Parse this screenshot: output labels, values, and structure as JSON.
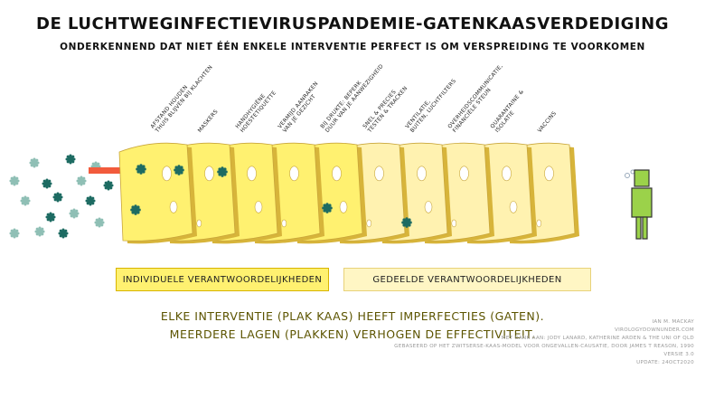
{
  "title": "De luchtweginfectievirus­pandemie-gatenkaasverdediging",
  "subtitle": "Onderkennend dat niet één enkele interventie perfect is om verspreiding te voorkomen",
  "slices": [
    {
      "lines": [
        "Afstand houden",
        "thuis blijven bij klachten"
      ]
    },
    {
      "lines": [
        "Maskers"
      ]
    },
    {
      "lines": [
        "Handhygiëne",
        "hoestetiquette"
      ]
    },
    {
      "lines": [
        "Vermijd aanraken",
        "van je gezicht"
      ]
    },
    {
      "lines": [
        "Bij drukte: beperk",
        "duur van je aanwezigheid"
      ]
    },
    {
      "lines": [
        "Snel & precies",
        "testen & tracken"
      ]
    },
    {
      "lines": [
        "Ventilatie,",
        "buiten, luchtfilters"
      ]
    },
    {
      "lines": [
        "Overheidscommunicatie,",
        "financiële steun"
      ]
    },
    {
      "lines": [
        "Quarantaine &",
        "isolatie"
      ]
    },
    {
      "lines": [
        "Vaccins"
      ]
    }
  ],
  "responsibility": {
    "individual": "Individuele verantwoordelijkheden",
    "shared": "Gedeelde verantwoordelijkheden"
  },
  "caption": {
    "line1": "Elke interventie (plak kaas) heeft imperfecties (gaten).",
    "line2": "Meerdere lagen (plakken) verhogen de effectiviteit."
  },
  "credits": {
    "author": "Ian M. Mackay",
    "site": "virologydownunder.com",
    "thanks": "met dank aan: Jody Lanard, Katherine Arden & the Uni of QLD",
    "based_on": "gebaseerd op het Zwitserse-kaas-model voor ongevallen-causatie, door James T Reason, 1990",
    "version": "versie 3.0",
    "update": "update: 24oct2020"
  },
  "colors": {
    "individual_cheese": "#fff170",
    "shared_cheese": "#fff2b0",
    "virus": "#1d6b62",
    "virus_light": "#8fbfb5",
    "arrow": "#f25b3c",
    "person": "#9bd24a"
  }
}
